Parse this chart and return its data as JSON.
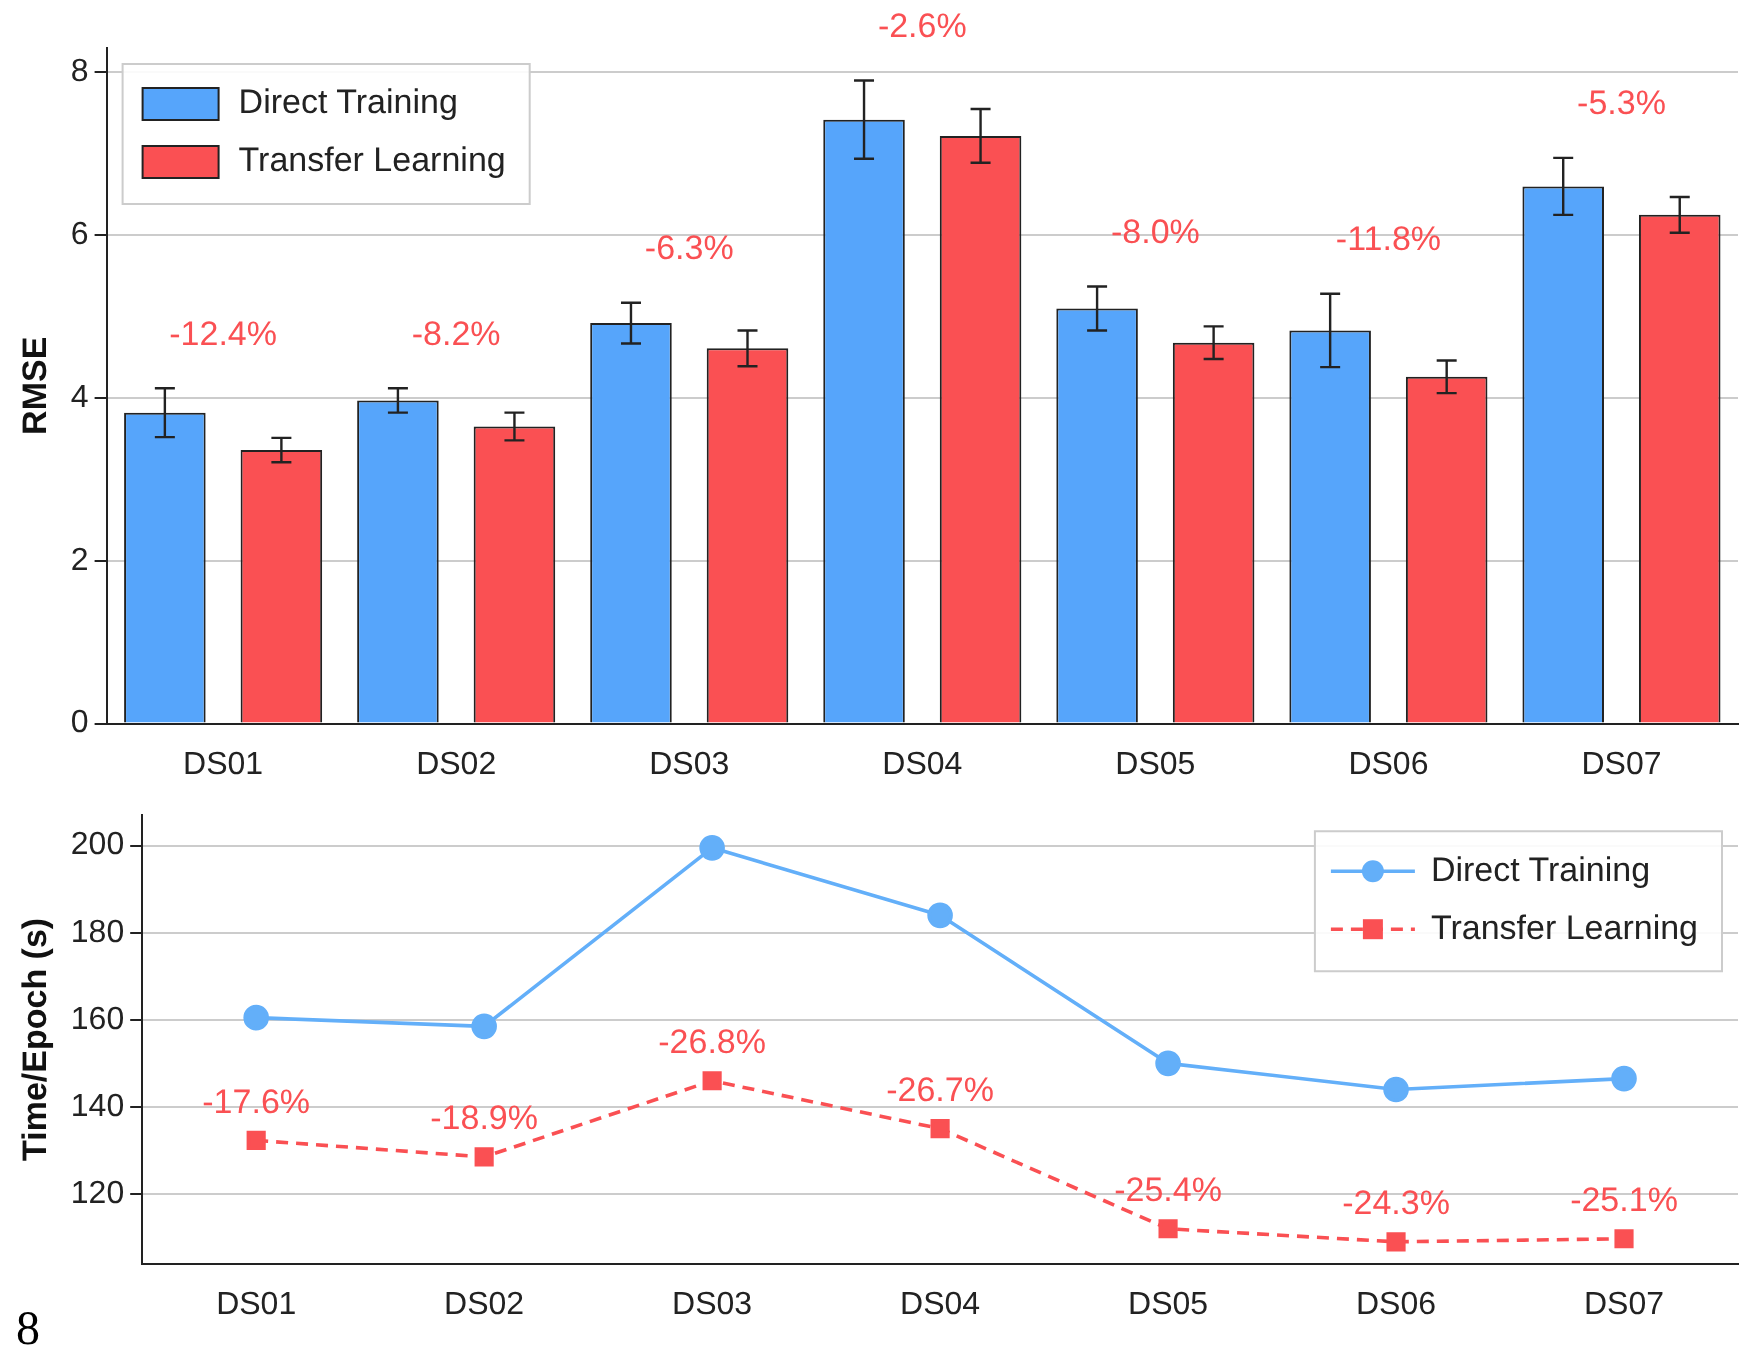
{
  "chart_data": [
    {
      "type": "bar",
      "ylabel": "RMSE",
      "categories": [
        "DS01",
        "DS02",
        "DS03",
        "DS04",
        "DS05",
        "DS06",
        "DS07"
      ],
      "series": [
        {
          "name": "Direct Training",
          "color": "#56a5fb",
          "values": [
            3.82,
            3.97,
            4.92,
            7.42,
            5.1,
            4.83,
            6.6
          ],
          "errors": [
            0.3,
            0.15,
            0.25,
            0.48,
            0.27,
            0.45,
            0.35
          ]
        },
        {
          "name": "Transfer Learning",
          "color": "#fa5053",
          "values": [
            3.36,
            3.65,
            4.61,
            7.22,
            4.68,
            4.26,
            6.25
          ],
          "errors": [
            0.15,
            0.17,
            0.22,
            0.33,
            0.2,
            0.2,
            0.22
          ]
        }
      ],
      "ylim": [
        0,
        8.3
      ],
      "yticks": [
        0,
        2,
        4,
        6,
        8
      ],
      "grid": "y",
      "legend": "top left",
      "annotations": [
        "-12.4%",
        "-8.2%",
        "-6.3%",
        "-2.6%",
        "-8.0%",
        "-11.8%",
        "-5.3%"
      ]
    },
    {
      "type": "line",
      "ylabel": "Time/Epoch (s)",
      "categories": [
        "DS01",
        "DS02",
        "DS03",
        "DS04",
        "DS05",
        "DS06",
        "DS07"
      ],
      "series": [
        {
          "name": "Direct Training",
          "color": "#63aff9",
          "values": [
            160.5,
            158.5,
            199.5,
            184,
            150,
            144,
            146.5
          ],
          "marker": "circle",
          "line_style": "solid"
        },
        {
          "name": "Transfer Learning",
          "color": "#fa5053",
          "values": [
            132.3,
            128.5,
            146,
            135,
            112,
            109,
            109.7
          ],
          "marker": "square",
          "line_style": "dashed"
        }
      ],
      "ylim": [
        104,
        207
      ],
      "yticks": [
        120,
        140,
        160,
        180,
        200
      ],
      "grid": "y",
      "legend": "top right",
      "annotations": [
        "-17.6%",
        "-18.9%",
        "-26.8%",
        "-26.7%",
        "-25.4%",
        "-24.3%",
        "-25.1%",
        "8"
      ]
    }
  ]
}
